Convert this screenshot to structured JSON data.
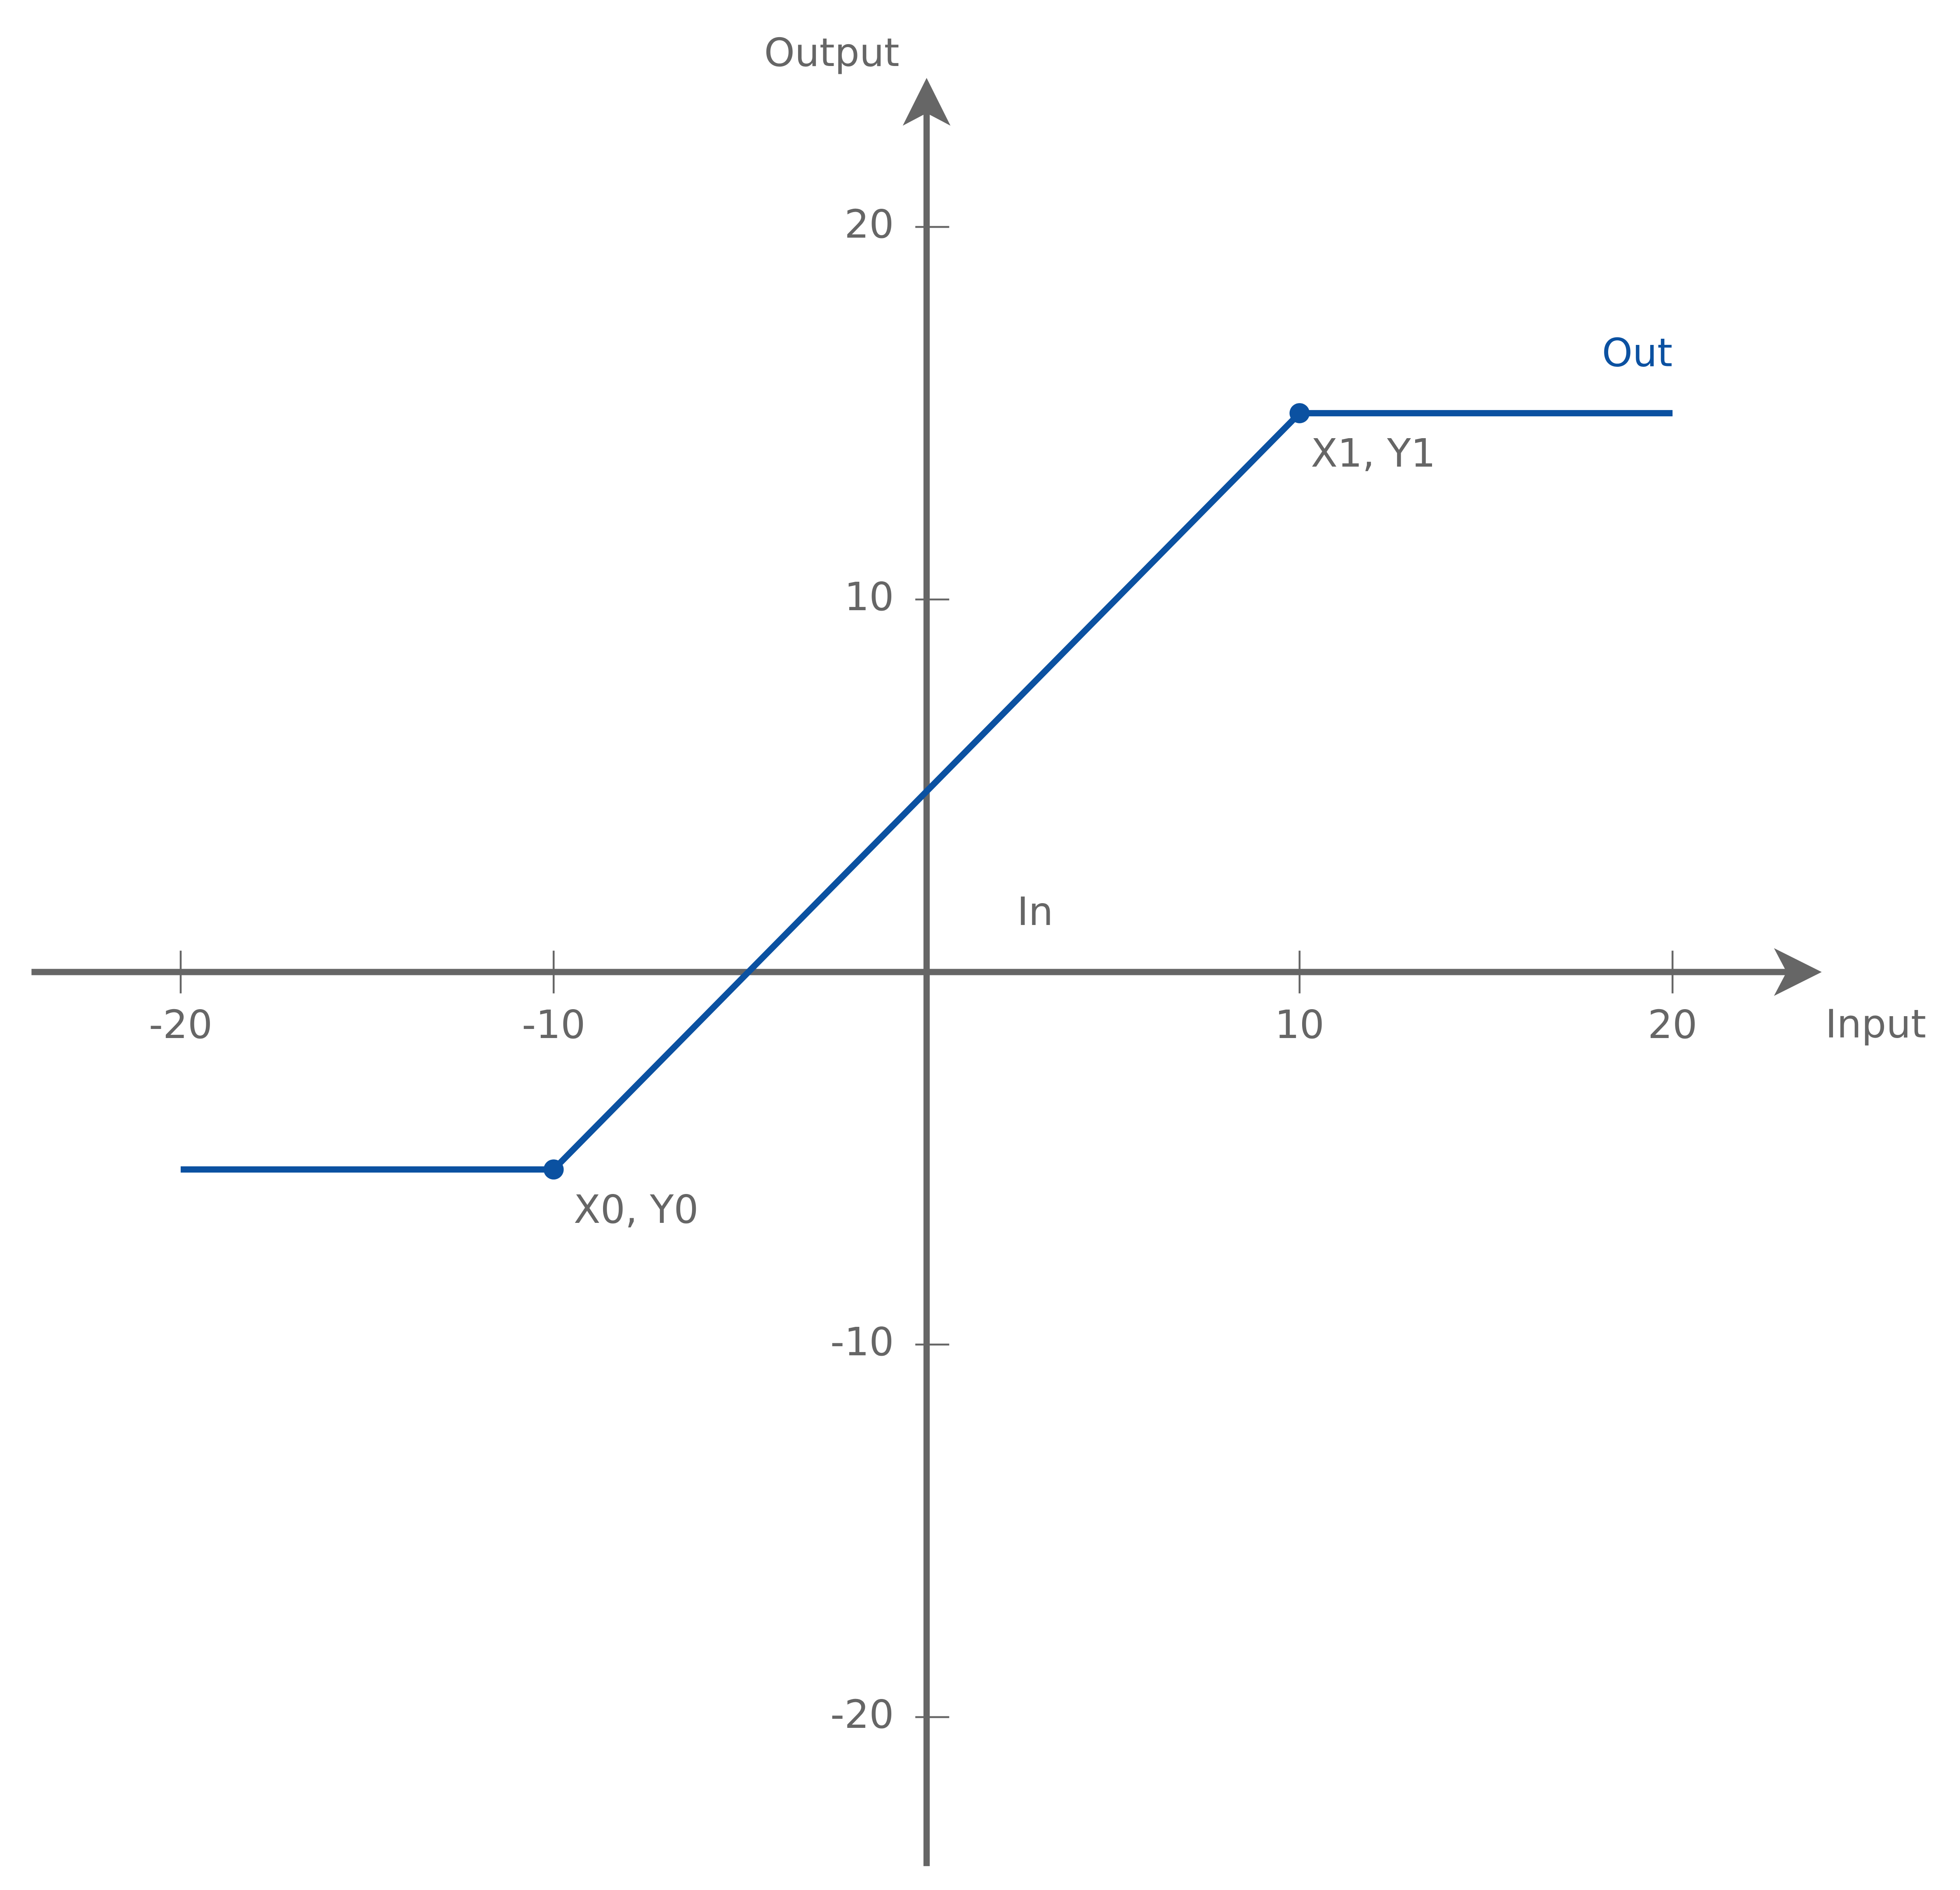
{
  "chart_data": {
    "type": "line",
    "x_label": "Input",
    "y_label": "Output",
    "x": [
      -20,
      -10,
      10,
      20
    ],
    "series": [
      {
        "name": "Out",
        "color": "#0b51a1",
        "values": [
          -5.3,
          -5.3,
          15,
          15
        ]
      }
    ],
    "annotations": [
      "In",
      "X0, Y0",
      "X1, Y1"
    ],
    "xlim": [
      -24,
      24
    ],
    "ylim": [
      -24,
      24
    ],
    "xticks": [
      -20,
      -10,
      10,
      20
    ],
    "yticks": [
      -20,
      -10,
      10,
      20
    ],
    "axis_color": "#666666",
    "grid": false
  }
}
